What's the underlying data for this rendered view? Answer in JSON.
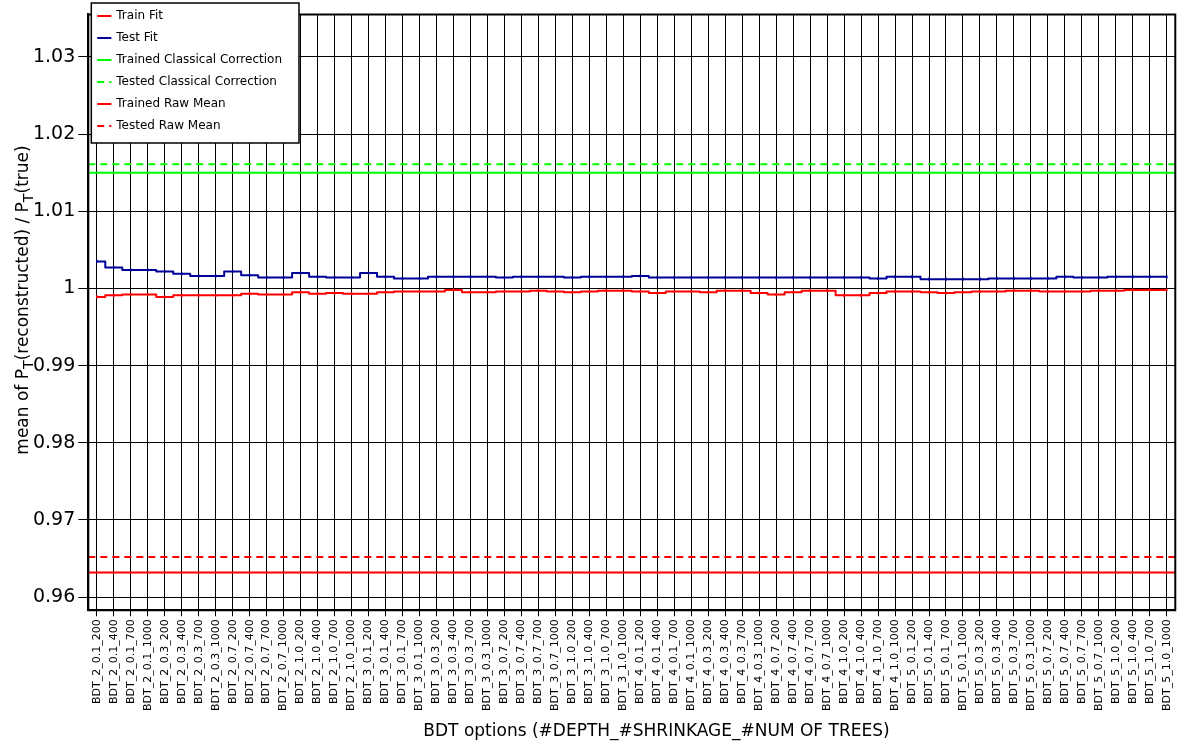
{
  "chart_data": {
    "type": "step",
    "xlabel": "BDT options (#DEPTH_#SHRINKAGE_#NUM OF TREES)",
    "ylabel": "mean of P$_{T}$(reconstructed) / P$_{T}$(true)",
    "categories": [
      "BDT_2_0.1_200",
      "BDT_2_0.1_400",
      "BDT_2_0.1_700",
      "BDT_2_0.1_1000",
      "BDT_2_0.3_200",
      "BDT_2_0.3_400",
      "BDT_2_0.3_700",
      "BDT_2_0.3_1000",
      "BDT_2_0.7_200",
      "BDT_2_0.7_400",
      "BDT_2_0.7_700",
      "BDT_2_0.7_1000",
      "BDT_2_1.0_200",
      "BDT_2_1.0_400",
      "BDT_2_1.0_700",
      "BDT_2_1.0_1000",
      "BDT_3_0.1_200",
      "BDT_3_0.1_400",
      "BDT_3_0.1_700",
      "BDT_3_0.1_1000",
      "BDT_3_0.3_200",
      "BDT_3_0.3_400",
      "BDT_3_0.3_700",
      "BDT_3_0.3_1000",
      "BDT_3_0.7_200",
      "BDT_3_0.7_400",
      "BDT_3_0.7_700",
      "BDT_3_0.7_1000",
      "BDT_3_1.0_200",
      "BDT_3_1.0_400",
      "BDT_3_1.0_700",
      "BDT_3_1.0_1000",
      "BDT_4_0.1_200",
      "BDT_4_0.1_400",
      "BDT_4_0.1_700",
      "BDT_4_0.1_1000",
      "BDT_4_0.3_200",
      "BDT_4_0.3_400",
      "BDT_4_0.3_700",
      "BDT_4_0.3_1000",
      "BDT_4_0.7_200",
      "BDT_4_0.7_400",
      "BDT_4_0.7_700",
      "BDT_4_0.7_1000",
      "BDT_4_1.0_200",
      "BDT_4_1.0_400",
      "BDT_4_1.0_700",
      "BDT_4_1.0_1000",
      "BDT_5_0.1_200",
      "BDT_5_0.1_400",
      "BDT_5_0.1_700",
      "BDT_5_0.1_1000",
      "BDT_5_0.3_200",
      "BDT_5_0.3_400",
      "BDT_5_0.3_700",
      "BDT_5_0.3_1000",
      "BDT_5_0.7_200",
      "BDT_5_0.7_400",
      "BDT_5_0.7_700",
      "BDT_5_0.7_1000",
      "BDT_5_1.0_200",
      "BDT_5_1.0_400",
      "BDT_5_1.0_700",
      "BDT_5_1.0_1000"
    ],
    "series": [
      {
        "name": "Train Fit",
        "color": "#ff0000",
        "values": [
          0.9989,
          0.9991,
          0.9992,
          0.9992,
          0.9989,
          0.9991,
          0.9991,
          0.9991,
          0.9991,
          0.9993,
          0.9992,
          0.9992,
          0.9995,
          0.9993,
          0.9994,
          0.9993,
          0.9993,
          0.9995,
          0.9996,
          0.9996,
          0.9996,
          0.9998,
          0.9995,
          0.9995,
          0.9996,
          0.9996,
          0.9997,
          0.9996,
          0.9995,
          0.9996,
          0.9997,
          0.9997,
          0.9996,
          0.9994,
          0.9996,
          0.9996,
          0.9995,
          0.9997,
          0.9997,
          0.9994,
          0.9992,
          0.9995,
          0.9997,
          0.9997,
          0.9991,
          0.9991,
          0.9994,
          0.9996,
          0.9996,
          0.9995,
          0.9994,
          0.9995,
          0.9996,
          0.9996,
          0.9997,
          0.9997,
          0.9996,
          0.9996,
          0.9996,
          0.9997,
          0.9997,
          0.9998,
          0.9998,
          0.9998
        ],
        "errors": [
          0.0002,
          0.0002,
          0.0002,
          0.0002,
          0.0002,
          0.0002,
          0.0002,
          0.0002,
          0.0002,
          0.0002,
          0.0002,
          0.0002,
          0.0002,
          0.0002,
          0.0002,
          0.0002,
          0.0002,
          0.0002,
          0.0002,
          0.0002,
          0.0002,
          0.0002,
          0.0002,
          0.0002,
          0.0002,
          0.0002,
          0.0002,
          0.0002,
          0.0002,
          0.0002,
          0.0002,
          0.0002,
          0.0002,
          0.0002,
          0.0002,
          0.0002,
          0.0002,
          0.0002,
          0.0002,
          0.0002,
          0.0002,
          0.0002,
          0.0002,
          0.0002,
          0.0002,
          0.0002,
          0.0002,
          0.0002,
          0.0002,
          0.0002,
          0.0002,
          0.0002,
          0.0002,
          0.0002,
          0.0002,
          0.0002,
          0.0002,
          0.0002,
          0.0002,
          0.0002,
          0.0002,
          0.0002,
          0.0002,
          0.0002
        ]
      },
      {
        "name": "Test Fit",
        "color": "#000099",
        "values": [
          1.0035,
          1.0027,
          1.0024,
          1.0024,
          1.0022,
          1.0019,
          1.0016,
          1.0016,
          1.0022,
          1.0017,
          1.0014,
          1.0014,
          1.002,
          1.0015,
          1.0014,
          1.0014,
          1.002,
          1.0015,
          1.0013,
          1.0013,
          1.0015,
          1.0015,
          1.0015,
          1.0015,
          1.0014,
          1.0015,
          1.0015,
          1.0015,
          1.0014,
          1.0015,
          1.0015,
          1.0015,
          1.0016,
          1.0014,
          1.0014,
          1.0014,
          1.0014,
          1.0014,
          1.0014,
          1.0014,
          1.0014,
          1.0014,
          1.0014,
          1.0014,
          1.0014,
          1.0014,
          1.0013,
          1.0015,
          1.0015,
          1.0012,
          1.0012,
          1.0012,
          1.0012,
          1.0013,
          1.0013,
          1.0013,
          1.0013,
          1.0015,
          1.0014,
          1.0014,
          1.0015,
          1.0015,
          1.0015,
          1.0015
        ],
        "errors": [
          0.0002,
          0.0002,
          0.0002,
          0.0002,
          0.0002,
          0.0002,
          0.0002,
          0.0002,
          0.0002,
          0.0002,
          0.0002,
          0.0002,
          0.0002,
          0.0002,
          0.0002,
          0.0002,
          0.0002,
          0.0002,
          0.0002,
          0.0002,
          0.0002,
          0.0002,
          0.0002,
          0.0002,
          0.0002,
          0.0002,
          0.0002,
          0.0002,
          0.0002,
          0.0002,
          0.0002,
          0.0002,
          0.0002,
          0.0002,
          0.0002,
          0.0002,
          0.0002,
          0.0002,
          0.0002,
          0.0002,
          0.0002,
          0.0002,
          0.0002,
          0.0002,
          0.0002,
          0.0002,
          0.0002,
          0.0002,
          0.0002,
          0.0002,
          0.0002,
          0.0002,
          0.0002,
          0.0002,
          0.0002,
          0.0002,
          0.0002,
          0.0002,
          0.0002,
          0.0002,
          0.0002,
          0.0002,
          0.0002,
          0.0002
        ]
      }
    ],
    "ref_lines": [
      {
        "axis": "y",
        "value": 1.015,
        "label": "Trained Classical Correction",
        "color": "#00ff00",
        "line_style": "solid"
      },
      {
        "axis": "y",
        "value": 1.0161,
        "label": "Tested Classical Correction",
        "color": "#00ff00",
        "line_style": "dashed"
      },
      {
        "axis": "y",
        "value": 0.9632,
        "label": "Trained Raw Mean",
        "color": "#ff0000",
        "line_style": "solid"
      },
      {
        "axis": "y",
        "value": 0.9652,
        "label": "Tested Raw Mean",
        "color": "#ff0000",
        "line_style": "dashed"
      }
    ],
    "ylim": [
      0.9583,
      1.0355
    ],
    "yticks": [
      0.96,
      0.97,
      0.98,
      0.99,
      1,
      1.01,
      1.02,
      1.03
    ],
    "grid": true,
    "legend": "top left",
    "marker": "none",
    "line_style": "solid"
  }
}
